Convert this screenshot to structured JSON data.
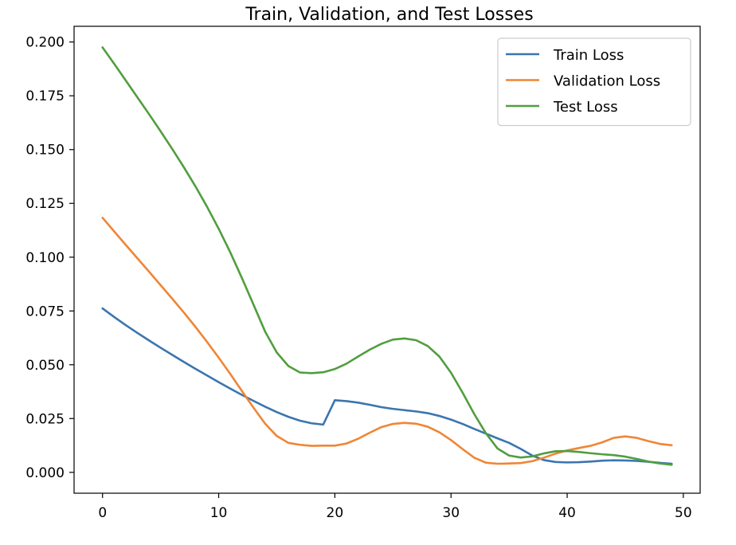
{
  "chart_data": {
    "type": "line",
    "title": "Train, Validation, and Test Losses",
    "xlabel": "",
    "ylabel": "",
    "xlim": [
      -2.45,
      51.45
    ],
    "ylim": [
      -0.0097,
      0.2073
    ],
    "x_ticks": [
      0,
      10,
      20,
      30,
      40,
      50
    ],
    "x_tick_labels": [
      "0",
      "10",
      "20",
      "30",
      "40",
      "50"
    ],
    "y_ticks": [
      0.0,
      0.025,
      0.05,
      0.075,
      0.1,
      0.125,
      0.15,
      0.175,
      0.2
    ],
    "y_tick_labels": [
      "0.000",
      "0.025",
      "0.050",
      "0.075",
      "0.100",
      "0.125",
      "0.150",
      "0.175",
      "0.200"
    ],
    "grid": false,
    "legend_position": "top-right",
    "x": [
      0,
      1,
      2,
      3,
      4,
      5,
      6,
      7,
      8,
      9,
      10,
      11,
      12,
      13,
      14,
      15,
      16,
      17,
      18,
      19,
      20,
      21,
      22,
      23,
      24,
      25,
      26,
      27,
      28,
      29,
      30,
      31,
      32,
      33,
      34,
      35,
      36,
      37,
      38,
      39,
      40,
      41,
      42,
      43,
      44,
      45,
      46,
      47,
      48,
      49
    ],
    "series": [
      {
        "name": "Train Loss",
        "color": "#3b75af",
        "values": [
          0.0762,
          0.0722,
          0.0684,
          0.0648,
          0.0613,
          0.0579,
          0.0546,
          0.0513,
          0.0481,
          0.045,
          0.0419,
          0.0389,
          0.036,
          0.0332,
          0.0305,
          0.028,
          0.0258,
          0.024,
          0.0228,
          0.0222,
          0.0335,
          0.0331,
          0.0324,
          0.0314,
          0.0303,
          0.0295,
          0.0289,
          0.0283,
          0.0275,
          0.0262,
          0.0245,
          0.0225,
          0.0202,
          0.018,
          0.0158,
          0.0137,
          0.0109,
          0.0078,
          0.0057,
          0.0048,
          0.0046,
          0.0047,
          0.005,
          0.0054,
          0.0056,
          0.0055,
          0.0053,
          0.0049,
          0.0044,
          0.004
        ]
      },
      {
        "name": "Validation Loss",
        "color": "#ef8636",
        "values": [
          0.1183,
          0.112,
          0.1057,
          0.0995,
          0.0933,
          0.087,
          0.0807,
          0.0743,
          0.0676,
          0.0606,
          0.0533,
          0.0457,
          0.0378,
          0.03,
          0.0226,
          0.0169,
          0.0137,
          0.0128,
          0.0123,
          0.0124,
          0.0124,
          0.0134,
          0.0156,
          0.0184,
          0.021,
          0.0225,
          0.023,
          0.0226,
          0.0212,
          0.0186,
          0.015,
          0.0108,
          0.0068,
          0.0045,
          0.004,
          0.0041,
          0.0043,
          0.0052,
          0.0068,
          0.0087,
          0.0102,
          0.0113,
          0.0123,
          0.0139,
          0.016,
          0.0167,
          0.016,
          0.0145,
          0.0132,
          0.0126
        ]
      },
      {
        "name": "Test Loss",
        "color": "#519e3e",
        "values": [
          0.1975,
          0.1899,
          0.1821,
          0.1743,
          0.1665,
          0.1585,
          0.1503,
          0.1418,
          0.1329,
          0.1234,
          0.1132,
          0.1022,
          0.0903,
          0.0779,
          0.0654,
          0.0557,
          0.0494,
          0.0464,
          0.0461,
          0.0465,
          0.048,
          0.0505,
          0.0538,
          0.057,
          0.0597,
          0.0617,
          0.0622,
          0.0614,
          0.0587,
          0.0538,
          0.0463,
          0.037,
          0.0271,
          0.0182,
          0.0111,
          0.0078,
          0.0069,
          0.0074,
          0.0088,
          0.0098,
          0.0099,
          0.0095,
          0.0089,
          0.0084,
          0.008,
          0.0073,
          0.0062,
          0.005,
          0.0041,
          0.0035
        ]
      }
    ]
  }
}
